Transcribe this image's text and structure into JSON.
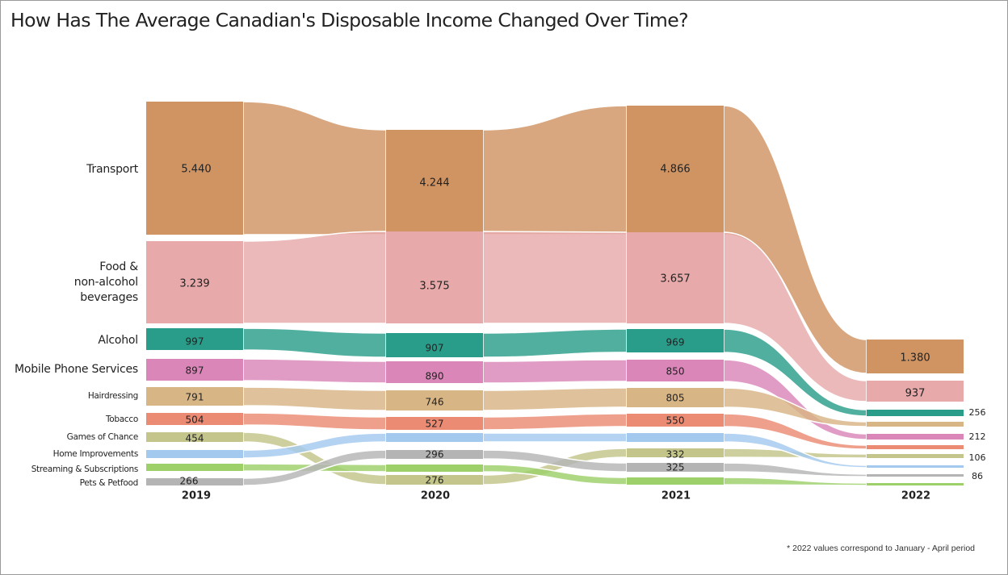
{
  "title": "How Has The Average Canadian's Disposable Income Changed Over Time?",
  "footnote": "* 2022 values correspond to January - April period",
  "chart_data": {
    "type": "bump-area",
    "title": "How Has The Average Canadian's Disposable Income Changed Over Time?",
    "categories": [
      "2019",
      "2020",
      "2021",
      "2022"
    ],
    "series": [
      {
        "name": "Transport",
        "color": "#d09463",
        "labels": [
          "5.440",
          "4.244",
          "4.866",
          "1.380"
        ],
        "values": [
          5440,
          4244,
          4866,
          1380
        ]
      },
      {
        "name": "Food & non-alcohol beverages",
        "color": "#e7a9a9",
        "labels": [
          "3.239",
          "3.575",
          "3.657",
          "937"
        ],
        "values": [
          3239,
          3575,
          3657,
          937
        ]
      },
      {
        "name": "Alcohol",
        "color": "#2a9d8a",
        "labels": [
          "997",
          "907",
          "969",
          "256"
        ],
        "values": [
          997,
          907,
          969,
          256
        ]
      },
      {
        "name": "Mobile Phone Services",
        "color": "#db86b9",
        "labels": [
          "897",
          "890",
          "850",
          "212"
        ],
        "values": [
          897,
          890,
          850,
          212
        ]
      },
      {
        "name": "Hairdressing",
        "color": "#d8b585",
        "labels": [
          "791",
          "746",
          "805",
          ""
        ],
        "values": [
          791,
          746,
          805,
          null
        ]
      },
      {
        "name": "Tobacco",
        "color": "#ec8b73",
        "labels": [
          "504",
          "527",
          "550",
          ""
        ],
        "values": [
          504,
          527,
          550,
          null
        ]
      },
      {
        "name": "Games of Chance",
        "color": "#c3c58a",
        "labels": [
          "454",
          "276",
          "332",
          "106"
        ],
        "values": [
          454,
          276,
          332,
          106
        ]
      },
      {
        "name": "Home Improvements",
        "color": "#a4c9ef",
        "labels": [
          "",
          "",
          "",
          ""
        ],
        "values": [
          null,
          null,
          null,
          null
        ]
      },
      {
        "name": "Streaming & Subscriptions",
        "color": "#9ed06a",
        "labels": [
          "",
          "",
          "",
          ""
        ],
        "values": [
          null,
          null,
          null,
          null
        ]
      },
      {
        "name": "Pets & Petfood",
        "color": "#b4b4b4",
        "labels": [
          "266",
          "296",
          "325",
          "86"
        ],
        "values": [
          266,
          296,
          325,
          86
        ]
      }
    ],
    "note": "* 2022 values correspond to January - April period"
  }
}
